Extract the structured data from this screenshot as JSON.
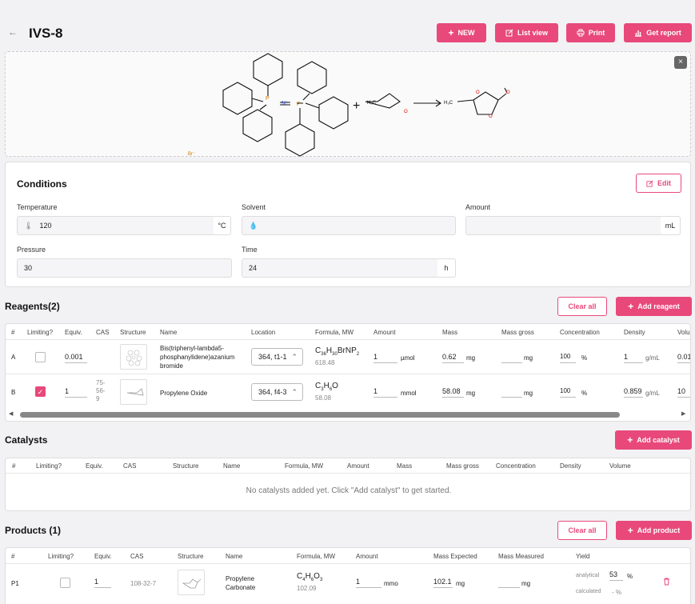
{
  "header": {
    "title": "IVS-8",
    "back_icon": "←",
    "buttons": {
      "new": "NEW",
      "list_view": "List view",
      "print": "Print",
      "get_report": "Get report"
    }
  },
  "scheme": {
    "close": "×",
    "plus": "+",
    "atom_n": "N⁺",
    "atom_p1": "P",
    "atom_p2": "P",
    "counter_ion": "Br⁻",
    "epox_label": "H₃C",
    "epox_o": "O",
    "prod_label": "H₃C",
    "prod_o1": "O",
    "prod_o2": "O",
    "prod_o3": "O"
  },
  "conditions": {
    "title": "Conditions",
    "edit": "Edit",
    "temperature": {
      "label": "Temperature",
      "value": "120",
      "unit": "°C"
    },
    "solvent": {
      "label": "Solvent",
      "value": ""
    },
    "amount": {
      "label": "Amount",
      "value": "",
      "unit": "mL"
    },
    "pressure": {
      "label": "Pressure",
      "value": "30"
    },
    "time": {
      "label": "Time",
      "value": "24",
      "unit": "h"
    }
  },
  "reagents": {
    "title": "Reagents(2)",
    "clear": "Clear all",
    "add": "Add reagent",
    "headers": [
      "#",
      "Limiting?",
      "Equiv.",
      "CAS",
      "Structure",
      "Name",
      "Location",
      "Formula, MW",
      "Amount",
      "Mass",
      "Mass gross",
      "Concentration",
      "Density",
      "Volu"
    ],
    "rows": [
      {
        "id": "A",
        "limiting": false,
        "equiv": "0.001",
        "cas": "",
        "name": "Bis(triphenyl-lambda5-phosphanylidene)azanium bromide",
        "location": "364, t1-1",
        "formula": "C36H30BrNP2",
        "f_main": "C",
        "f_s1": "36",
        "f_h": "H",
        "f_s2": "30",
        "f_rest": "BrNP",
        "f_s3": "2",
        "mw": "618.48",
        "amount": "1",
        "amount_unit": "µmol",
        "mass": "0.62",
        "mass_unit": "mg",
        "mass_gross": "",
        "mg_unit": "mg",
        "conc": "100",
        "conc_unit": "%",
        "density": "1",
        "density_unit": "g/mL",
        "volume": "0.01"
      },
      {
        "id": "B",
        "limiting": true,
        "equiv": "1",
        "cas": "75-56-9",
        "cas_l1": "75-",
        "cas_l2": "56-",
        "cas_l3": "9",
        "name": "Propylene Oxide",
        "location": "364, f4-3",
        "formula": "C3H6O",
        "f_main": "C",
        "f_s1": "3",
        "f_h": "H",
        "f_s2": "6",
        "f_rest": "O",
        "f_s3": "",
        "mw": "58.08",
        "amount": "1",
        "amount_unit": "mmol",
        "mass": "58.08",
        "mass_unit": "mg",
        "mass_gross": "",
        "mg_unit": "mg",
        "conc": "100",
        "conc_unit": "%",
        "density": "0.859",
        "density_unit": "g/mL",
        "volume": "10"
      }
    ]
  },
  "catalysts": {
    "title": "Catalysts",
    "add": "Add catalyst",
    "headers": [
      "#",
      "Limiting?",
      "Equiv.",
      "CAS",
      "Structure",
      "Name",
      "Formula, MW",
      "Amount",
      "Mass",
      "Mass gross",
      "Concentration",
      "Density",
      "Volume"
    ],
    "empty": "No catalysts added yet. Click \"Add catalyst\" to get started."
  },
  "products": {
    "title": "Products (1)",
    "clear": "Clear all",
    "add": "Add product",
    "headers": [
      "#",
      "Limiting?",
      "Equiv.",
      "CAS",
      "Structure",
      "Name",
      "Formula, MW",
      "Amount",
      "Mass Expected",
      "Mass Measured",
      "Yield"
    ],
    "rows": [
      {
        "id": "P1",
        "limiting": false,
        "equiv": "1",
        "cas": "108-32-7",
        "name_l1": "Propylene",
        "name_l2": "Carbonate",
        "f_main": "C",
        "f_s1": "4",
        "f_h": "H",
        "f_s2": "6",
        "f_rest": "O",
        "f_s3": "3",
        "mw": "102.09",
        "amount": "1",
        "amount_unit": "mmo",
        "mass_expected": "102.1",
        "me_unit": "mg",
        "mass_measured": "",
        "mm_unit": "mg",
        "yield_analytical_label": "analytical",
        "yield_analytical": "53",
        "yield_unit": "%",
        "yield_calculated_label": "calculated",
        "yield_calculated": "- %"
      }
    ]
  },
  "colors": {
    "accent": "#e8497a"
  }
}
